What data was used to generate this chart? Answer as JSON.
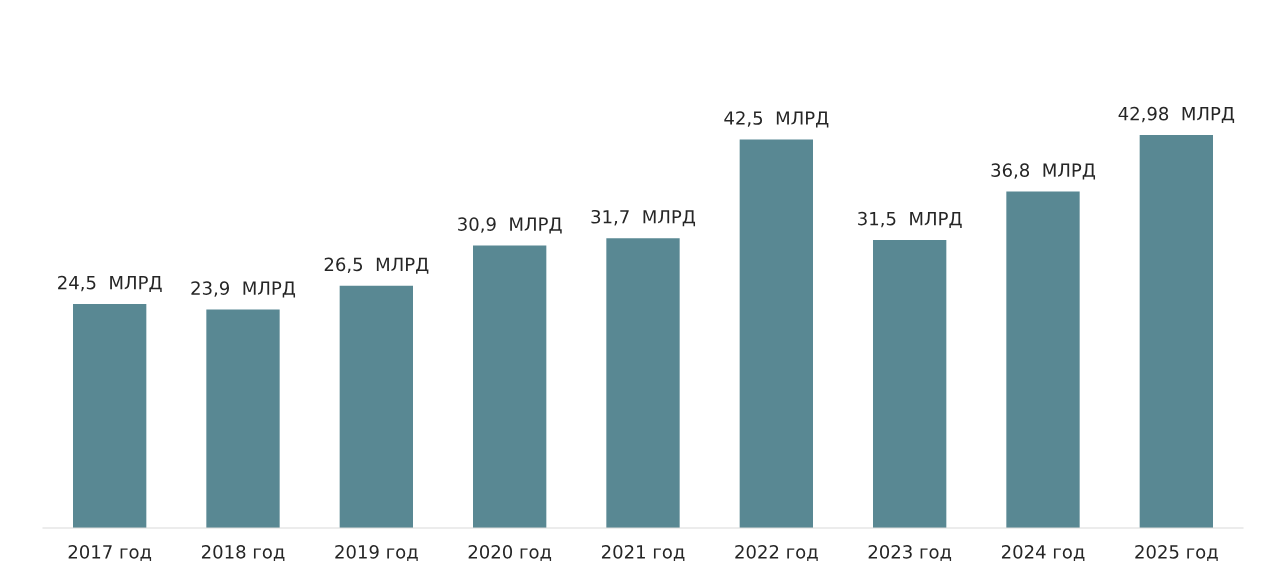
{
  "chart_data": {
    "type": "bar",
    "categories": [
      "2017 год",
      "2018 год",
      "2019 год",
      "2020 год",
      "2021 год",
      "2022 год",
      "2023 год",
      "2024 год",
      "2025 год"
    ],
    "values": [
      24.5,
      23.9,
      26.5,
      30.9,
      31.7,
      42.5,
      31.5,
      36.8,
      42.98
    ],
    "value_labels": [
      "24,5  МЛРД",
      "23,9  МЛРД",
      "26,5  МЛРД",
      "30,9  МЛРД",
      "31,7  МЛРД",
      "42,5  МЛРД",
      "31,5  МЛРД",
      "36,8  МЛРД",
      "42,98  МЛРД"
    ],
    "color": "#598893"
  }
}
